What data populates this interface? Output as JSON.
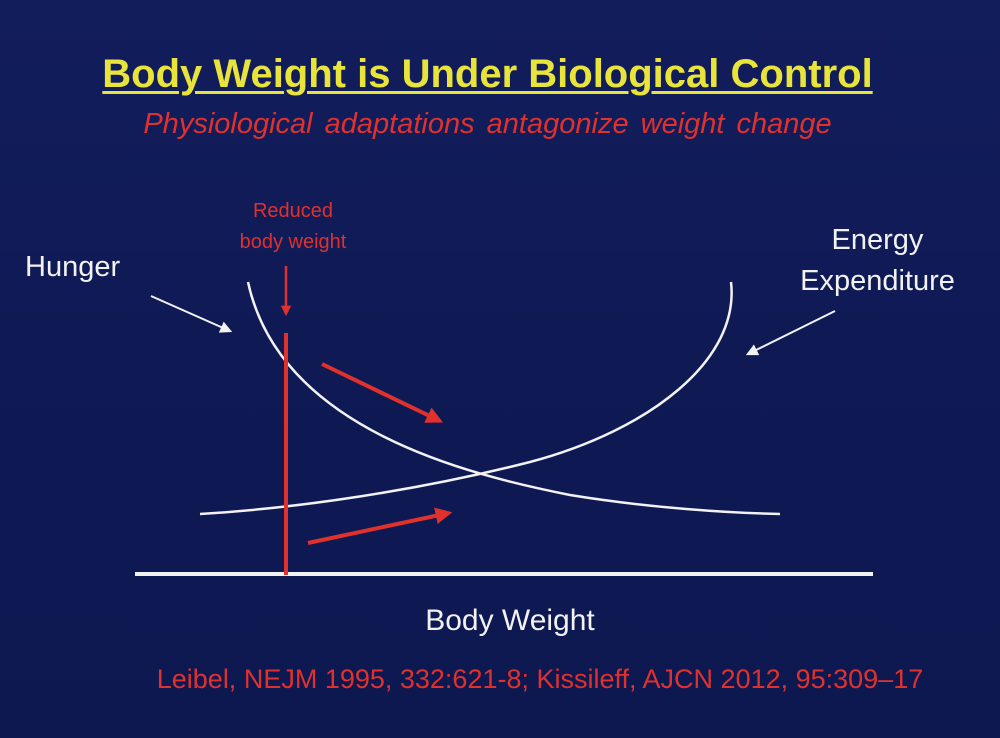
{
  "title": "Body Weight is Under Biological Control",
  "subtitle": "Physiological adaptations antagonize weight change",
  "diagram": {
    "marker_label_line1": "Reduced",
    "marker_label_line2": "body weight",
    "hunger_label": "Hunger",
    "energy_label_line1": "Energy",
    "energy_label_line2": "Expenditure",
    "x_axis_label": "Body Weight"
  },
  "citation": "Leibel, NEJM 1995, 332:621-8; Kissileff, AJCN 2012, 95:309–17",
  "colors": {
    "background": "#0f1a55",
    "title": "#e9e43a",
    "accent_red": "#e0312c",
    "white": "#f2f2f2"
  }
}
